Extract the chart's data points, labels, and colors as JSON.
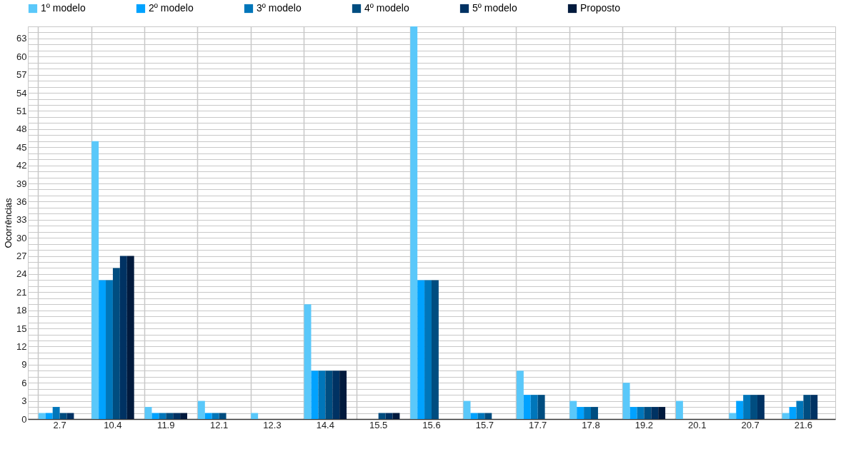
{
  "chart_data": {
    "type": "bar",
    "ylabel": "Ocorrências",
    "categories": [
      "2.7",
      "10.4",
      "11.9",
      "12.1",
      "12.3",
      "14.4",
      "15.5",
      "15.6",
      "15.7",
      "17.7",
      "17.8",
      "19.2",
      "20.1",
      "20.7",
      "21.6"
    ],
    "series": [
      {
        "name": "1º modelo",
        "color": "#5ac8fa",
        "values": [
          1,
          46,
          2,
          3,
          1,
          19,
          null,
          65,
          3,
          8,
          3,
          6,
          3,
          1,
          1
        ]
      },
      {
        "name": "2º modelo",
        "color": "#00a2ff",
        "values": [
          1,
          23,
          1,
          1,
          null,
          8,
          null,
          23,
          1,
          4,
          2,
          2,
          null,
          3,
          2
        ]
      },
      {
        "name": "3º modelo",
        "color": "#0076ba",
        "values": [
          2,
          23,
          1,
          1,
          null,
          8,
          null,
          23,
          1,
          4,
          2,
          2,
          null,
          4,
          3
        ]
      },
      {
        "name": "4º modelo",
        "color": "#004d80",
        "values": [
          1,
          25,
          1,
          1,
          null,
          8,
          1,
          23,
          1,
          4,
          2,
          2,
          null,
          4,
          4
        ]
      },
      {
        "name": "5º modelo",
        "color": "#003263",
        "values": [
          1,
          27,
          1,
          null,
          null,
          8,
          1,
          null,
          null,
          null,
          null,
          2,
          null,
          4,
          4
        ]
      },
      {
        "name": "Proposto",
        "color": "#011a3d",
        "values": [
          null,
          27,
          1,
          null,
          null,
          8,
          1,
          null,
          null,
          null,
          null,
          2,
          null,
          null,
          null
        ]
      }
    ],
    "ylim": [
      0,
      65
    ],
    "yticks": [
      0,
      {
        "value": 1,
        "label": null
      },
      {
        "value": 2,
        "label": null
      },
      3,
      {
        "value": 4,
        "label": null
      },
      {
        "value": 5,
        "label": null
      },
      6,
      {
        "value": 7,
        "label": null
      },
      {
        "value": 8,
        "label": null
      },
      9,
      {
        "value": 10,
        "label": null
      },
      {
        "value": 11,
        "label": null
      },
      12,
      {
        "value": 13,
        "label": null
      },
      {
        "value": 14,
        "label": null
      },
      15,
      {
        "value": 16,
        "label": null
      },
      {
        "value": 17,
        "label": null
      },
      18,
      {
        "value": 19,
        "label": null
      },
      {
        "value": 20,
        "label": null
      },
      21,
      {
        "value": 22,
        "label": null
      },
      {
        "value": 23,
        "label": null
      },
      24,
      {
        "value": 25,
        "label": null
      },
      {
        "value": 26,
        "label": null
      },
      27,
      {
        "value": 28,
        "label": null
      },
      {
        "value": 29,
        "label": null
      },
      30,
      {
        "value": 31,
        "label": null
      },
      {
        "value": 32,
        "label": null
      },
      33,
      {
        "value": 34,
        "label": null
      },
      {
        "value": 35,
        "label": null
      },
      36,
      {
        "value": 37,
        "label": null
      },
      {
        "value": 38,
        "label": null
      },
      39,
      {
        "value": 40,
        "label": null
      },
      {
        "value": 41,
        "label": null
      },
      42,
      {
        "value": 43,
        "label": null
      },
      {
        "value": 44,
        "label": null
      },
      45,
      {
        "value": 46,
        "label": null
      },
      {
        "value": 47,
        "label": null
      },
      48,
      {
        "value": 49,
        "label": null
      },
      {
        "value": 50,
        "label": null
      },
      51,
      {
        "value": 52,
        "label": null
      },
      {
        "value": 53,
        "label": null
      },
      54,
      {
        "value": 55,
        "label": null
      },
      {
        "value": 56,
        "label": null
      },
      57,
      {
        "value": 58,
        "label": null
      },
      {
        "value": 59,
        "label": null
      },
      60,
      {
        "value": 61,
        "label": null
      },
      {
        "value": 62,
        "label": null
      },
      63,
      {
        "value": 64,
        "label": null
      },
      {
        "value": 65,
        "label": null
      }
    ],
    "grid": true,
    "legend": "top"
  }
}
